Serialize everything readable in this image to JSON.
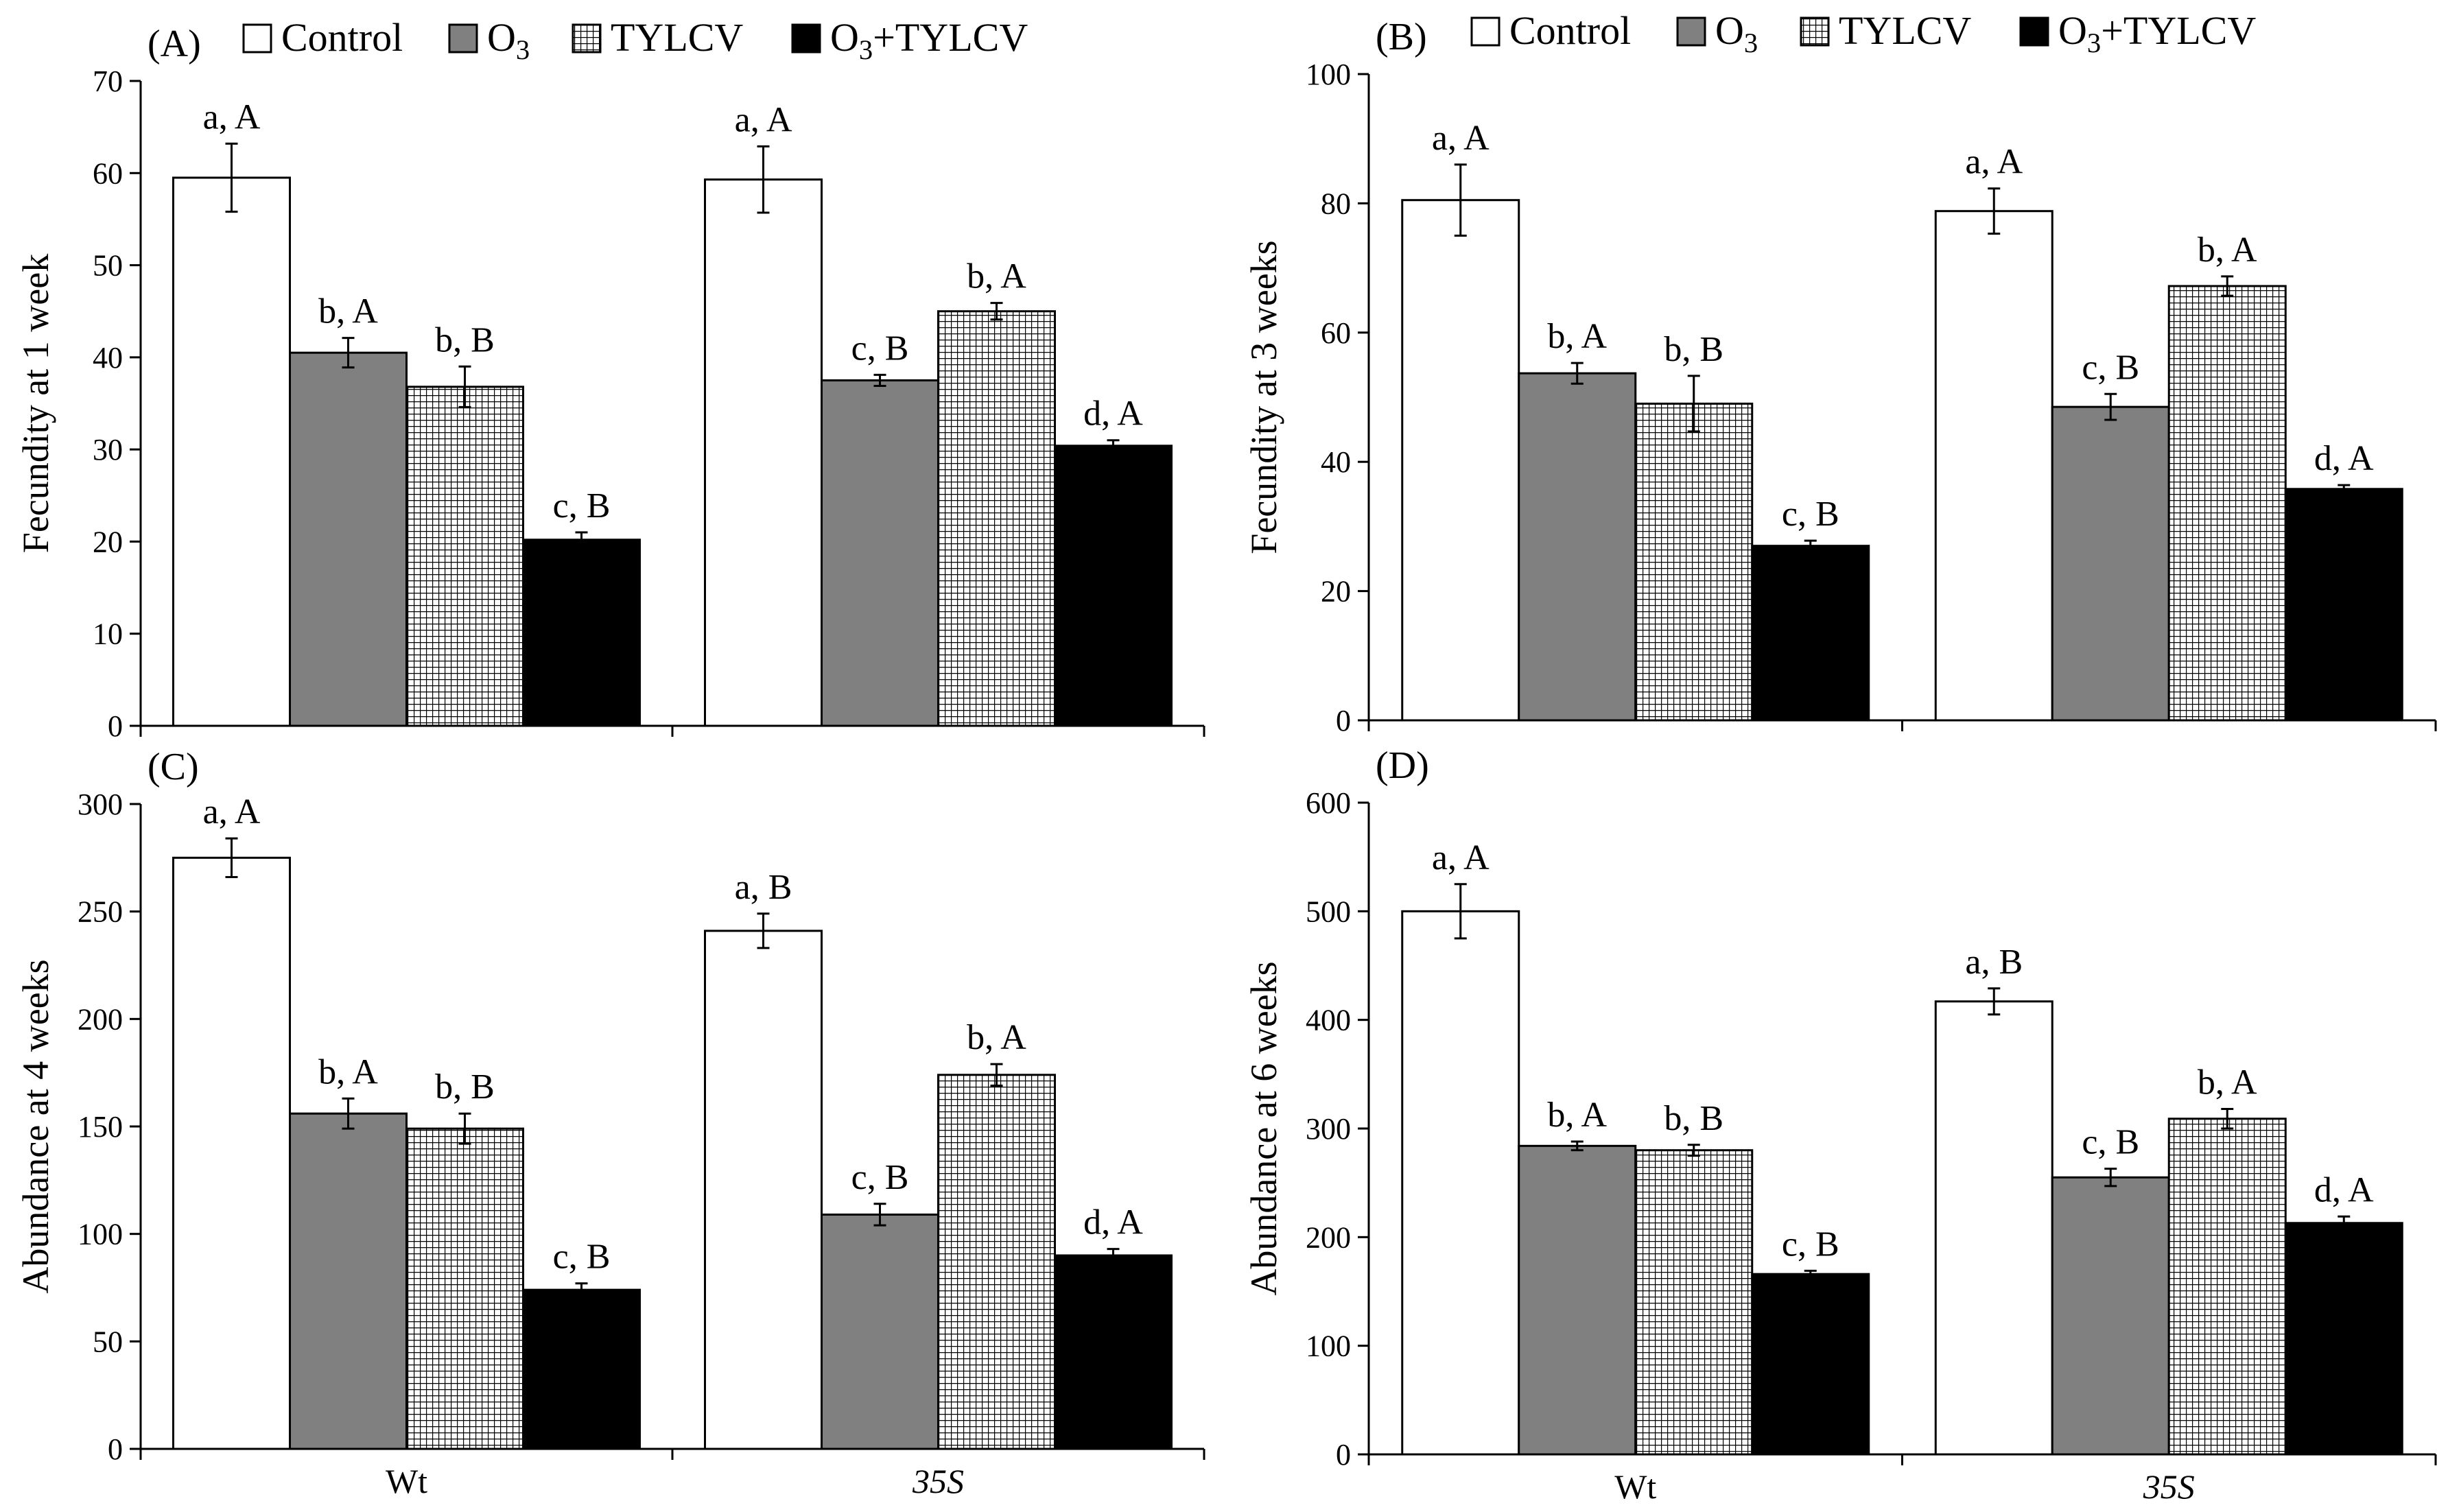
{
  "series_names": [
    "Control",
    "O3",
    "TYLCV",
    "O3+TYLCV"
  ],
  "series_colors": [
    "#ffffff",
    "#808080",
    "hatch",
    "#000000"
  ],
  "chart_data": [
    {
      "type": "bar",
      "panel_label": "(A)",
      "ylabel": "Fecundity at 1 week",
      "ylim": [
        0,
        70
      ],
      "yticks": [
        0,
        10,
        20,
        30,
        40,
        50,
        60,
        70
      ],
      "categories": [
        "Wt",
        "35S"
      ],
      "show_categories": false,
      "legend": "top",
      "series": [
        {
          "name": "Control",
          "values": [
            59.5,
            59.3
          ],
          "errors": [
            3.7,
            3.6
          ],
          "labels": [
            "a, A",
            "a, A"
          ]
        },
        {
          "name": "O3",
          "values": [
            40.5,
            37.5
          ],
          "errors": [
            1.6,
            0.6
          ],
          "labels": [
            "b, A",
            "c, B"
          ]
        },
        {
          "name": "TYLCV",
          "values": [
            36.8,
            45.0
          ],
          "errors": [
            2.2,
            0.9
          ],
          "labels": [
            "b, B",
            "b, A"
          ]
        },
        {
          "name": "O3+TYLCV",
          "values": [
            20.2,
            30.4
          ],
          "errors": [
            0.8,
            0.6
          ],
          "labels": [
            "c, B",
            "d, A"
          ]
        }
      ]
    },
    {
      "type": "bar",
      "panel_label": "(B)",
      "ylabel": "Fecundity at 3 weeks",
      "ylim": [
        0,
        100
      ],
      "yticks": [
        0,
        20,
        40,
        60,
        80,
        100
      ],
      "categories": [
        "Wt",
        "35S"
      ],
      "show_categories": false,
      "legend": "top",
      "series": [
        {
          "name": "Control",
          "values": [
            80.5,
            78.8
          ],
          "errors": [
            5.5,
            3.5
          ],
          "labels": [
            "a, A",
            "a, A"
          ]
        },
        {
          "name": "O3",
          "values": [
            53.7,
            48.5
          ],
          "errors": [
            1.6,
            2.0
          ],
          "labels": [
            "b, A",
            "c, B"
          ]
        },
        {
          "name": "TYLCV",
          "values": [
            49.0,
            67.2
          ],
          "errors": [
            4.3,
            1.5
          ],
          "labels": [
            "b, B",
            "b, A"
          ]
        },
        {
          "name": "O3+TYLCV",
          "values": [
            27.0,
            35.8
          ],
          "errors": [
            0.8,
            0.6
          ],
          "labels": [
            "c, B",
            "d, A"
          ]
        }
      ]
    },
    {
      "type": "bar",
      "panel_label": "(C)",
      "ylabel": "Abundance at 4 weeks",
      "ylim": [
        0,
        300
      ],
      "yticks": [
        0,
        50,
        100,
        150,
        200,
        250,
        300
      ],
      "categories": [
        "Wt",
        "35S"
      ],
      "show_categories": true,
      "legend": "none",
      "series": [
        {
          "name": "Control",
          "values": [
            275,
            241
          ],
          "errors": [
            9,
            8
          ],
          "labels": [
            "a, A",
            "a, B"
          ]
        },
        {
          "name": "O3",
          "values": [
            156,
            109
          ],
          "errors": [
            7,
            5
          ],
          "labels": [
            "b, A",
            "c, B"
          ]
        },
        {
          "name": "TYLCV",
          "values": [
            149,
            174
          ],
          "errors": [
            7,
            5
          ],
          "labels": [
            "b, B",
            "b, A"
          ]
        },
        {
          "name": "O3+TYLCV",
          "values": [
            74,
            90
          ],
          "errors": [
            3,
            3
          ],
          "labels": [
            "c, B",
            "d, A"
          ]
        }
      ]
    },
    {
      "type": "bar",
      "panel_label": "(D)",
      "ylabel": "Abundance at 6 weeks",
      "ylim": [
        0,
        600
      ],
      "yticks": [
        0,
        100,
        200,
        300,
        400,
        500,
        600
      ],
      "categories": [
        "Wt",
        "35S"
      ],
      "show_categories": true,
      "legend": "none",
      "series": [
        {
          "name": "Control",
          "values": [
            500,
            417
          ],
          "errors": [
            25,
            12
          ],
          "labels": [
            "a, A",
            "a, B"
          ]
        },
        {
          "name": "O3",
          "values": [
            284,
            255
          ],
          "errors": [
            4,
            8
          ],
          "labels": [
            "b, A",
            "c, B"
          ]
        },
        {
          "name": "TYLCV",
          "values": [
            280,
            309
          ],
          "errors": [
            5,
            9
          ],
          "labels": [
            "b, B",
            "b, A"
          ]
        },
        {
          "name": "O3+TYLCV",
          "values": [
            166,
            213
          ],
          "errors": [
            3,
            6
          ],
          "labels": [
            "c, B",
            "d, A"
          ]
        }
      ]
    }
  ]
}
